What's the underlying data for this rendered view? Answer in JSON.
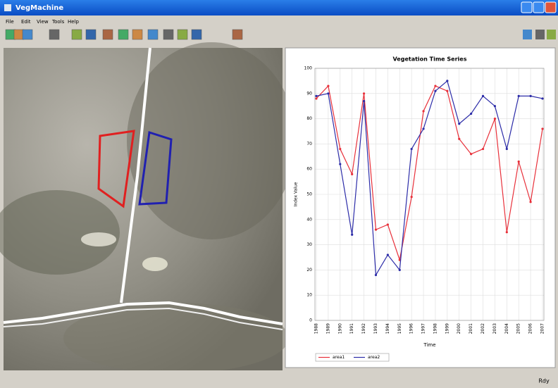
{
  "window": {
    "title": "VegMachine",
    "menu": [
      "File",
      "Edit",
      "View",
      "Tools",
      "Help"
    ],
    "status": "Rdy"
  },
  "chart_data": {
    "type": "line",
    "title": "Vegetation Time Series",
    "x_label": "Time",
    "y_label": "Index Value",
    "categories": [
      "1988",
      "1989",
      "1990",
      "1991",
      "1992",
      "1993",
      "1994",
      "1995",
      "1996",
      "1997",
      "1998",
      "1999",
      "2000",
      "2001",
      "2002",
      "2003",
      "2004",
      "2005",
      "2006",
      "2007"
    ],
    "series": [
      {
        "name": "area1",
        "color": "#e8303a",
        "values": [
          88,
          93,
          68,
          58,
          90,
          36,
          38,
          24,
          49,
          83,
          93,
          91,
          72,
          66,
          68,
          80,
          35,
          63,
          47,
          76
        ]
      },
      {
        "name": "area2",
        "color": "#2c2ca8",
        "values": [
          89,
          90,
          62,
          34,
          87,
          18,
          26,
          20,
          68,
          76,
          91,
          95,
          78,
          82,
          89,
          85,
          68,
          89,
          89,
          88
        ]
      }
    ],
    "ylim": [
      0,
      100
    ],
    "yticks": [
      0,
      10,
      20,
      30,
      40,
      50,
      60,
      70,
      80,
      90,
      100
    ],
    "grid": true,
    "legend": "bottom"
  }
}
